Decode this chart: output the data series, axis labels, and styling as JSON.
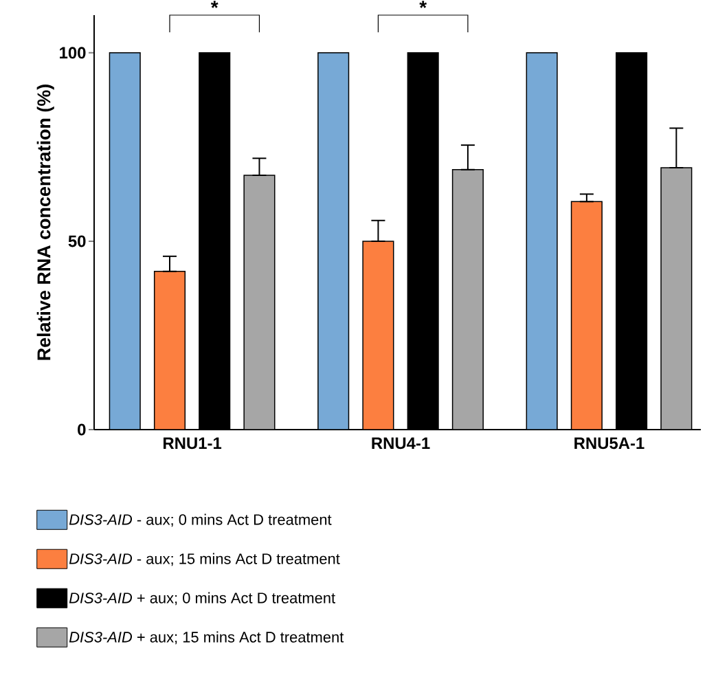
{
  "chart_data": {
    "type": "bar",
    "ylabel": "Relative RNA concentration (%)",
    "categories": [
      "RNU1-1",
      "RNU4-1",
      "RNU5A-1"
    ],
    "series": [
      {
        "name": "*DIS3-AID* - aux; 0 mins Act D treatment",
        "color": "#77a9d6",
        "values": [
          100,
          100,
          100
        ]
      },
      {
        "name": "*DIS3-AID* - aux; 15 mins Act D treatment",
        "color": "#fc7f40",
        "values": [
          42,
          50,
          60.5
        ],
        "errors": [
          [
            42,
            46
          ],
          [
            50,
            55.5
          ],
          [
            60.5,
            62.5
          ]
        ]
      },
      {
        "name": "*DIS3-AID* + aux; 0 mins Act D treatment",
        "color": "#000000",
        "values": [
          100,
          100,
          100
        ]
      },
      {
        "name": "*DIS3-AID* + aux; 15 mins Act D treatment",
        "color": "#a6a6a6",
        "values": [
          67.5,
          69,
          69.5
        ],
        "errors": [
          [
            67.5,
            72
          ],
          [
            69,
            75.5
          ],
          [
            69.5,
            80
          ]
        ]
      }
    ],
    "ylim": [
      0,
      110
    ],
    "yticks": [
      0,
      50,
      100
    ],
    "annotations": [
      "*",
      "*"
    ],
    "legend": "bottom",
    "grid": false
  }
}
